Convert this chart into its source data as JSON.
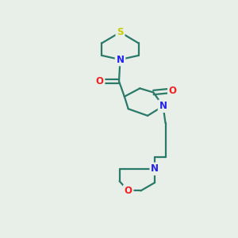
{
  "background_color": "#e8eee8",
  "bond_color": "#2a7a6a",
  "N_color": "#2222ee",
  "O_color": "#ee2222",
  "S_color": "#cccc00",
  "line_width": 1.6,
  "figsize": [
    3.0,
    3.0
  ],
  "dpi": 100,
  "xlim": [
    0,
    10
  ],
  "ylim": [
    0,
    10
  ]
}
